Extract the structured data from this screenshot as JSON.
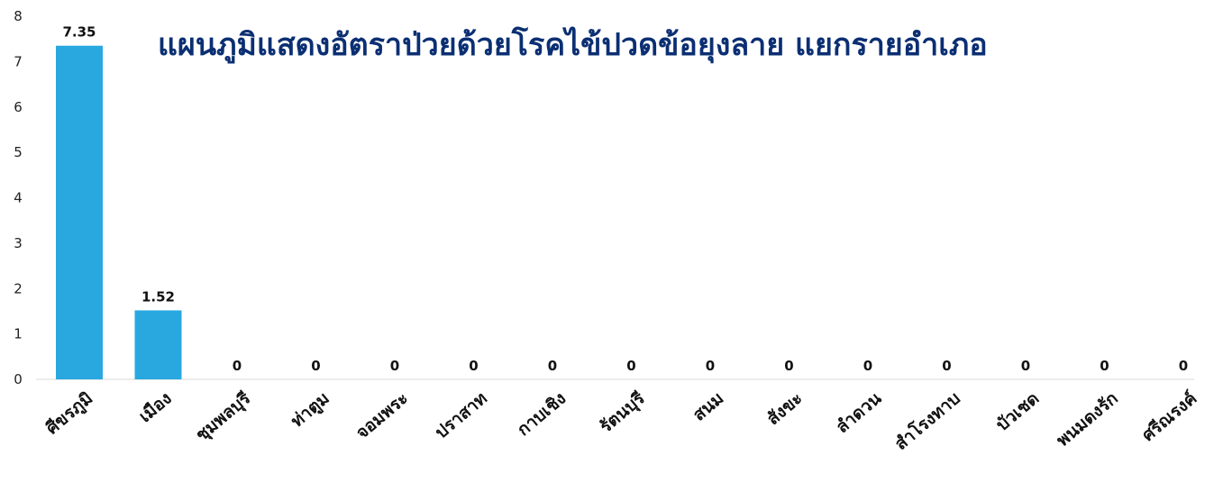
{
  "chart_data": {
    "type": "bar",
    "title": "แผนภูมิแสดงอัตราป่วยด้วยโรคไข้ปวดข้อยุงลาย แยกรายอำเภอ",
    "categories": [
      "ศีขรภูมิ",
      "เมือง",
      "ชุมพลบุรี",
      "ท่าตูม",
      "จอมพระ",
      "ปราสาท",
      "กาบเชิง",
      "รัตนบุรี",
      "สนม",
      "สังขะ",
      "ลำดวน",
      "สำโรงทาบ",
      "บัวเชด",
      "พนมดงรัก",
      "ศรีณรงค์"
    ],
    "values": [
      7.35,
      1.52,
      0,
      0,
      0,
      0,
      0,
      0,
      0,
      0,
      0,
      0,
      0,
      0,
      0
    ],
    "data_labels": [
      "7.35",
      "1.52",
      "0",
      "0",
      "0",
      "0",
      "0",
      "0",
      "0",
      "0",
      "0",
      "0",
      "0",
      "0",
      "0"
    ],
    "y_ticks": [
      "0",
      "1",
      "2",
      "3",
      "4",
      "5",
      "6",
      "7",
      "8"
    ],
    "ylim": [
      0,
      8
    ],
    "xlabel": "",
    "ylabel": "",
    "grid": false,
    "legend": "none",
    "bar_color": "#29a8e0",
    "title_color": "#0b2f73"
  }
}
